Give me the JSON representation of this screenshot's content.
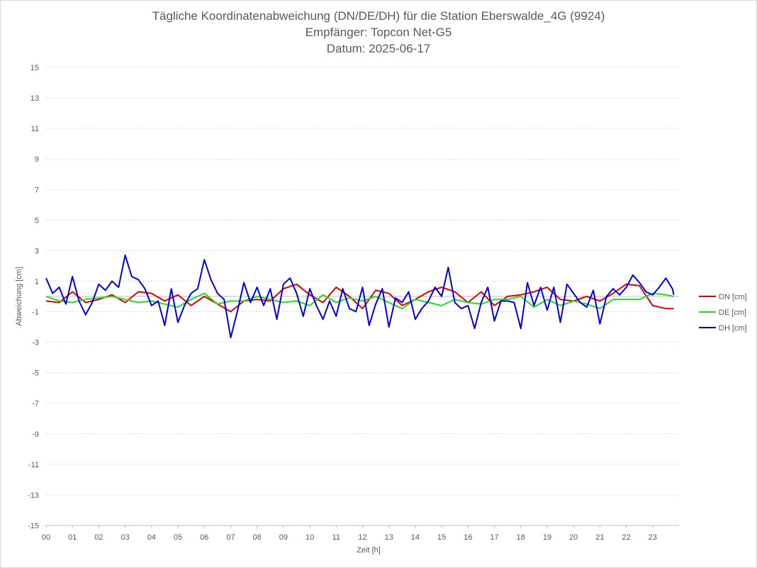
{
  "chart_data": {
    "type": "line",
    "title": "Tägliche Koordinatenabweichung (DN/DE/DH) für die Station Eberswalde_4G (9924)",
    "subtitle_1": "Empfänger: Topcon Net-G5",
    "subtitle_2": "Datum: 2025-06-17",
    "xlabel": "Zeit [h]",
    "ylabel": "Abweichung [cm]",
    "xlim": [
      0,
      24
    ],
    "ylim": [
      -15,
      15
    ],
    "x_ticks": [
      "00",
      "01",
      "02",
      "03",
      "04",
      "05",
      "06",
      "07",
      "08",
      "09",
      "10",
      "11",
      "12",
      "13",
      "14",
      "15",
      "16",
      "17",
      "18",
      "19",
      "20",
      "21",
      "22",
      "23"
    ],
    "y_ticks": [
      "15",
      "13",
      "11",
      "9",
      "7",
      "5",
      "3",
      "1",
      "-1",
      "-3",
      "-5",
      "-7",
      "-9",
      "-11",
      "-13",
      "-15"
    ],
    "y_tick_values": [
      15,
      13,
      11,
      9,
      7,
      5,
      3,
      1,
      -1,
      -3,
      -5,
      -7,
      -9,
      -11,
      -13,
      -15
    ],
    "grid": true,
    "legend_position": "right",
    "series": [
      {
        "name": "DN [cm]",
        "color": "#e00000",
        "x": [
          0,
          0.5,
          1,
          1.5,
          2,
          2.5,
          3,
          3.5,
          4,
          4.5,
          5,
          5.5,
          6,
          6.5,
          7,
          7.5,
          8,
          8.5,
          9,
          9.5,
          10,
          10.5,
          11,
          11.5,
          12,
          12.5,
          13,
          13.5,
          14,
          14.5,
          15,
          15.5,
          16,
          16.5,
          17,
          17.5,
          18,
          18.5,
          19,
          19.5,
          20,
          20.5,
          21,
          21.5,
          22,
          22.5,
          23,
          23.5,
          23.8
        ],
        "values": [
          -0.3,
          -0.4,
          0.3,
          -0.4,
          -0.2,
          0.1,
          -0.4,
          0.3,
          0.2,
          -0.3,
          0.1,
          -0.6,
          0.0,
          -0.5,
          -1.0,
          -0.3,
          -0.2,
          -0.3,
          0.5,
          0.8,
          0.1,
          -0.4,
          0.6,
          0.0,
          -0.8,
          0.4,
          0.2,
          -0.6,
          -0.2,
          0.3,
          0.6,
          0.3,
          -0.4,
          0.3,
          -0.6,
          0.0,
          0.1,
          0.3,
          0.6,
          -0.2,
          -0.3,
          0.0,
          -0.3,
          0.2,
          0.8,
          0.7,
          -0.6,
          -0.8,
          -0.8
        ]
      },
      {
        "name": "DE [cm]",
        "color": "#22dd22",
        "x": [
          0,
          0.5,
          1,
          1.5,
          2,
          2.5,
          3,
          3.5,
          4,
          4.5,
          5,
          5.5,
          6,
          6.5,
          7,
          7.5,
          8,
          8.5,
          9,
          9.5,
          10,
          10.5,
          11,
          11.5,
          12,
          12.5,
          13,
          13.5,
          14,
          14.5,
          15,
          15.5,
          16,
          16.5,
          17,
          17.5,
          18,
          18.5,
          19,
          19.5,
          20,
          20.5,
          21,
          21.5,
          22,
          22.5,
          23,
          23.5,
          23.8
        ],
        "values": [
          0.0,
          -0.3,
          -0.4,
          -0.2,
          -0.1,
          0.0,
          -0.2,
          -0.4,
          -0.3,
          -0.5,
          -0.7,
          -0.2,
          0.2,
          -0.5,
          -0.3,
          -0.3,
          0.0,
          -0.2,
          -0.4,
          -0.3,
          -0.6,
          0.1,
          -0.4,
          -0.1,
          -0.3,
          0.0,
          -0.4,
          -0.8,
          -0.2,
          -0.4,
          -0.6,
          -0.2,
          -0.4,
          -0.5,
          -0.2,
          -0.2,
          0.0,
          -0.7,
          -0.2,
          -0.6,
          -0.3,
          -0.5,
          -0.8,
          -0.2,
          -0.2,
          -0.2,
          0.2,
          0.1,
          0.0
        ]
      },
      {
        "name": "DH [cm]",
        "color": "#0000dd",
        "x": [
          0,
          0.25,
          0.5,
          0.75,
          1,
          1.25,
          1.5,
          1.75,
          2,
          2.25,
          2.5,
          2.75,
          3,
          3.25,
          3.5,
          3.75,
          4,
          4.25,
          4.5,
          4.75,
          5,
          5.25,
          5.5,
          5.75,
          6,
          6.25,
          6.5,
          6.75,
          7,
          7.25,
          7.5,
          7.75,
          8,
          8.25,
          8.5,
          8.75,
          9,
          9.25,
          9.5,
          9.75,
          10,
          10.25,
          10.5,
          10.75,
          11,
          11.25,
          11.5,
          11.75,
          12,
          12.25,
          12.5,
          12.75,
          13,
          13.25,
          13.5,
          13.75,
          14,
          14.25,
          14.5,
          14.75,
          15,
          15.25,
          15.5,
          15.75,
          16,
          16.25,
          16.5,
          16.75,
          17,
          17.25,
          17.5,
          17.75,
          18,
          18.25,
          18.5,
          18.75,
          19,
          19.25,
          19.5,
          19.75,
          20,
          20.25,
          20.5,
          20.75,
          21,
          21.25,
          21.5,
          21.75,
          22,
          22.25,
          22.5,
          22.75,
          23,
          23.25,
          23.5,
          23.75,
          23.8
        ],
        "values": [
          1.2,
          0.2,
          0.6,
          -0.5,
          1.3,
          -0.3,
          -1.2,
          -0.4,
          0.8,
          0.4,
          1.0,
          0.6,
          2.7,
          1.3,
          1.1,
          0.5,
          -0.6,
          -0.3,
          -1.9,
          0.5,
          -1.7,
          -0.6,
          0.2,
          0.5,
          2.4,
          1.1,
          0.2,
          -0.2,
          -2.7,
          -1.0,
          0.9,
          -0.4,
          0.6,
          -0.6,
          0.5,
          -1.5,
          0.8,
          1.2,
          0.2,
          -1.3,
          0.5,
          -0.6,
          -1.5,
          -0.3,
          -1.3,
          0.5,
          -0.8,
          -1.0,
          0.6,
          -1.9,
          -0.5,
          0.5,
          -2.0,
          -0.1,
          -0.4,
          0.3,
          -1.5,
          -0.8,
          -0.3,
          0.6,
          0.0,
          1.9,
          -0.4,
          -0.8,
          -0.6,
          -2.1,
          -0.4,
          0.6,
          -1.6,
          -0.3,
          -0.3,
          -0.4,
          -2.1,
          0.9,
          -0.6,
          0.6,
          -0.9,
          0.6,
          -1.7,
          0.8,
          0.2,
          -0.4,
          -0.7,
          0.4,
          -1.8,
          0.0,
          0.5,
          0.1,
          0.6,
          1.4,
          0.9,
          0.3,
          0.1,
          0.6,
          1.2,
          0.5,
          0.1
        ]
      }
    ]
  }
}
